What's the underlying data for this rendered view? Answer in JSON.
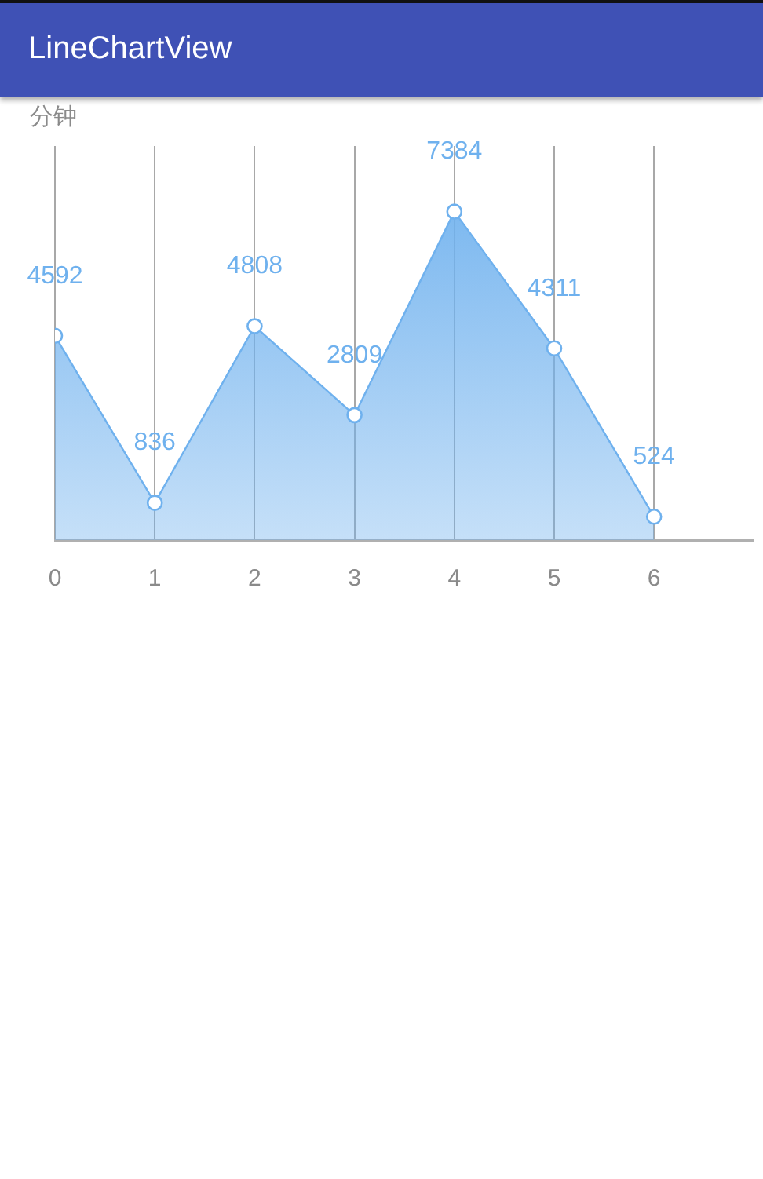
{
  "chart_data": {
    "type": "area",
    "title": "LineChartView",
    "ylabel": "分钟",
    "x": [
      0,
      1,
      2,
      3,
      4,
      5,
      6
    ],
    "series": [
      {
        "color": "#6fb1ee",
        "values": [
          4592,
          836,
          4808,
          2809,
          7384,
          4311,
          524
        ]
      }
    ],
    "xlim": [
      0,
      7
    ],
    "xticks": [
      0,
      1,
      2,
      3,
      4,
      5,
      6
    ],
    "ylim": [
      0,
      8860
    ],
    "tick_labels": "x",
    "grid": "x",
    "marker": "circle",
    "line_style": "solid",
    "data_labels": true
  }
}
